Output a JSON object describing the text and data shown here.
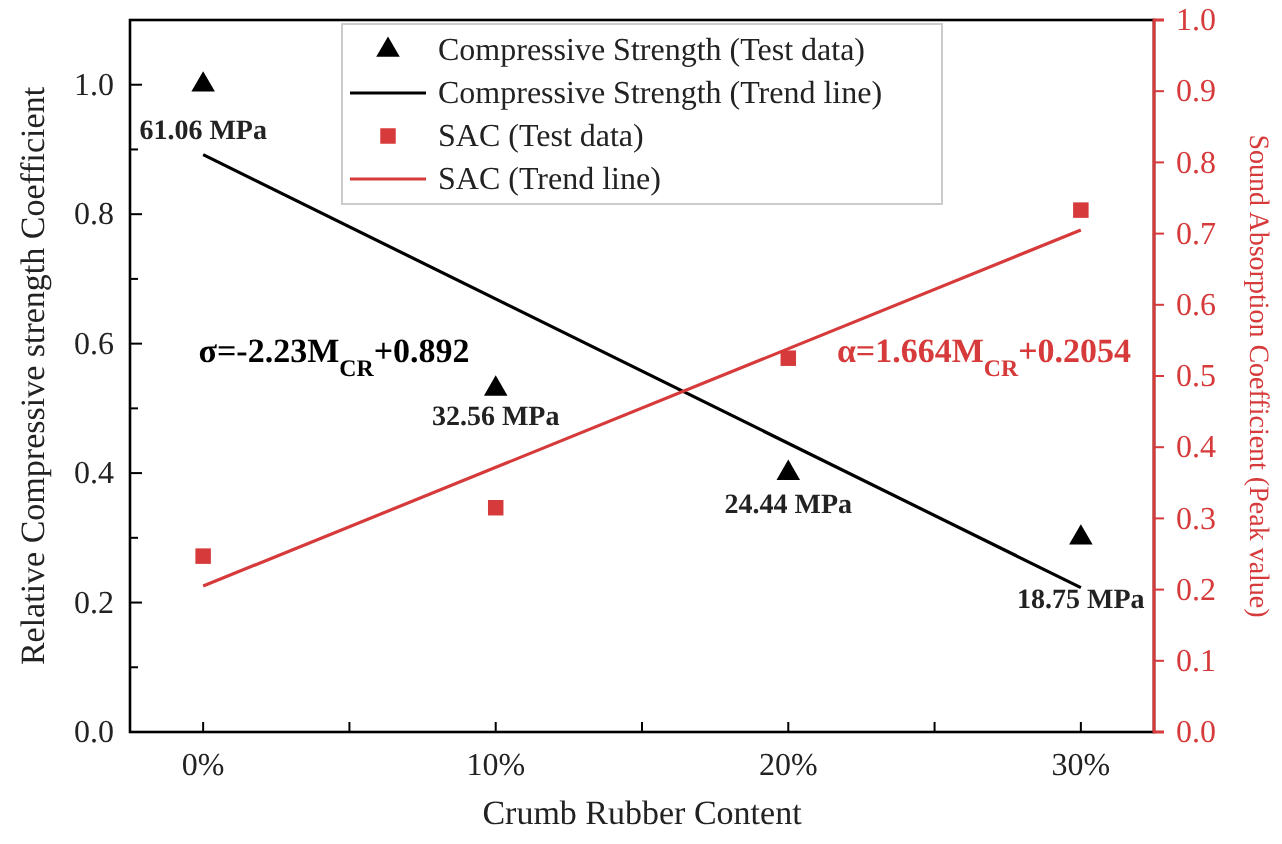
{
  "chart_data": {
    "type": "scatter",
    "xlabel": "Crumb Rubber Content",
    "ylabel": "Relative Compressive strength Coefficient",
    "y2label": "Sound Absorption Coefficient (Peak value)",
    "xlim": [
      -2.5,
      32.5
    ],
    "xticks": [
      {
        "value": 0,
        "label": "0%"
      },
      {
        "value": 5,
        "label": null
      },
      {
        "value": 10,
        "label": "10%"
      },
      {
        "value": 15,
        "label": null
      },
      {
        "value": 20,
        "label": "20%"
      },
      {
        "value": 25,
        "label": null
      },
      {
        "value": 30,
        "label": "30%"
      }
    ],
    "ylim": [
      0,
      1.1
    ],
    "yticks": [
      {
        "value": 0,
        "label": "0.0"
      },
      {
        "value": 0.1,
        "label": null
      },
      {
        "value": 0.2,
        "label": "0.2"
      },
      {
        "value": 0.3,
        "label": null
      },
      {
        "value": 0.4,
        "label": "0.4"
      },
      {
        "value": 0.5,
        "label": null
      },
      {
        "value": 0.6,
        "label": "0.6"
      },
      {
        "value": 0.7,
        "label": null
      },
      {
        "value": 0.8,
        "label": "0.8"
      },
      {
        "value": 0.9,
        "label": null
      },
      {
        "value": 1.0,
        "label": "1.0"
      }
    ],
    "y2lim": [
      0,
      1.0
    ],
    "y2ticks": [
      {
        "value": 0,
        "label": "0.0"
      },
      {
        "value": 0.1,
        "label": "0.1"
      },
      {
        "value": 0.2,
        "label": "0.2"
      },
      {
        "value": 0.3,
        "label": "0.3"
      },
      {
        "value": 0.4,
        "label": "0.4"
      },
      {
        "value": 0.5,
        "label": "0.5"
      },
      {
        "value": 0.6,
        "label": "0.6"
      },
      {
        "value": 0.7,
        "label": "0.7"
      },
      {
        "value": 0.8,
        "label": "0.8"
      },
      {
        "value": 0.9,
        "label": "0.9"
      },
      {
        "value": 1.0,
        "label": "1.0"
      }
    ],
    "series": [
      {
        "name": "Compressive Strength (Test data)",
        "color": "#000000",
        "marker": "triangle",
        "x": [
          0,
          10,
          20,
          30
        ],
        "values": [
          1.0,
          0.53,
          0.4,
          0.3
        ]
      },
      {
        "name": "Compressive Strength (Trend line)",
        "type": "line",
        "color": "#000000",
        "marker": "none",
        "x": [
          0,
          30
        ],
        "values": [
          0.892,
          0.223
        ]
      },
      {
        "name": "SAC (Test data)",
        "color": "#d63a3a",
        "marker": "square",
        "axis": "y2",
        "x": [
          0,
          10,
          20,
          30
        ],
        "values": [
          0.247,
          0.315,
          0.525,
          0.733
        ]
      },
      {
        "name": "SAC (Trend line)",
        "type": "line",
        "color": "#d63a3a",
        "marker": "none",
        "axis": "y2",
        "x": [
          0,
          30
        ],
        "values": [
          0.205,
          0.705
        ]
      }
    ],
    "annotations": [
      {
        "text": "61.06 MPa",
        "x": 0,
        "y": 1.0
      },
      {
        "text": "32.56 MPa",
        "x": 10,
        "y": 0.53
      },
      {
        "text": "24.44 MPa",
        "x": 20,
        "y": 0.4
      },
      {
        "text": "18.75 MPa",
        "x": 30,
        "y": 0.3
      },
      "σ=-2.23M$_{CR}$+0.892",
      "α=1.664M$_{CR}$+0.2054"
    ],
    "legend": "top",
    "grid": false
  }
}
